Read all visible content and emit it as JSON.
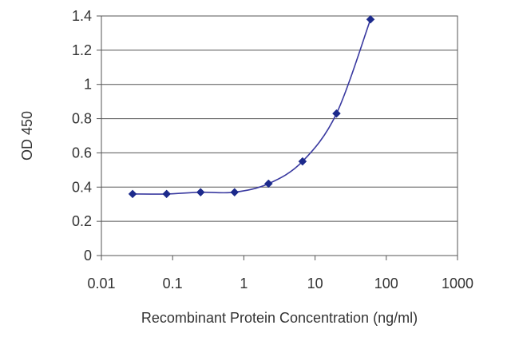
{
  "chart_data": {
    "type": "line",
    "title": "",
    "xlabel": "Recombinant Protein Concentration (ng/ml)",
    "ylabel": "OD 450",
    "xscale": "log",
    "xlim": [
      0.01,
      1000
    ],
    "ylim": [
      0,
      1.4
    ],
    "x_ticks": [
      0.01,
      0.1,
      1,
      10,
      100,
      1000
    ],
    "x_tick_labels": [
      "0.01",
      "0.1",
      "1",
      "10",
      "100",
      "1000"
    ],
    "y_ticks": [
      0,
      0.2,
      0.4,
      0.6,
      0.8,
      1,
      1.2,
      1.4
    ],
    "y_tick_labels": [
      "0",
      "0.2",
      "0.4",
      "0.6",
      "0.8",
      "1",
      "1.2",
      "1.4"
    ],
    "grid": "horizontal",
    "legend": "none",
    "series": [
      {
        "x": [
          0.0274,
          0.0823,
          0.247,
          0.741,
          2.22,
          6.67,
          20,
          60
        ],
        "y": [
          0.36,
          0.36,
          0.37,
          0.37,
          0.42,
          0.55,
          0.83,
          1.38
        ],
        "color": "#3a3aa0",
        "marker_color": "#1c2a8c"
      }
    ]
  }
}
